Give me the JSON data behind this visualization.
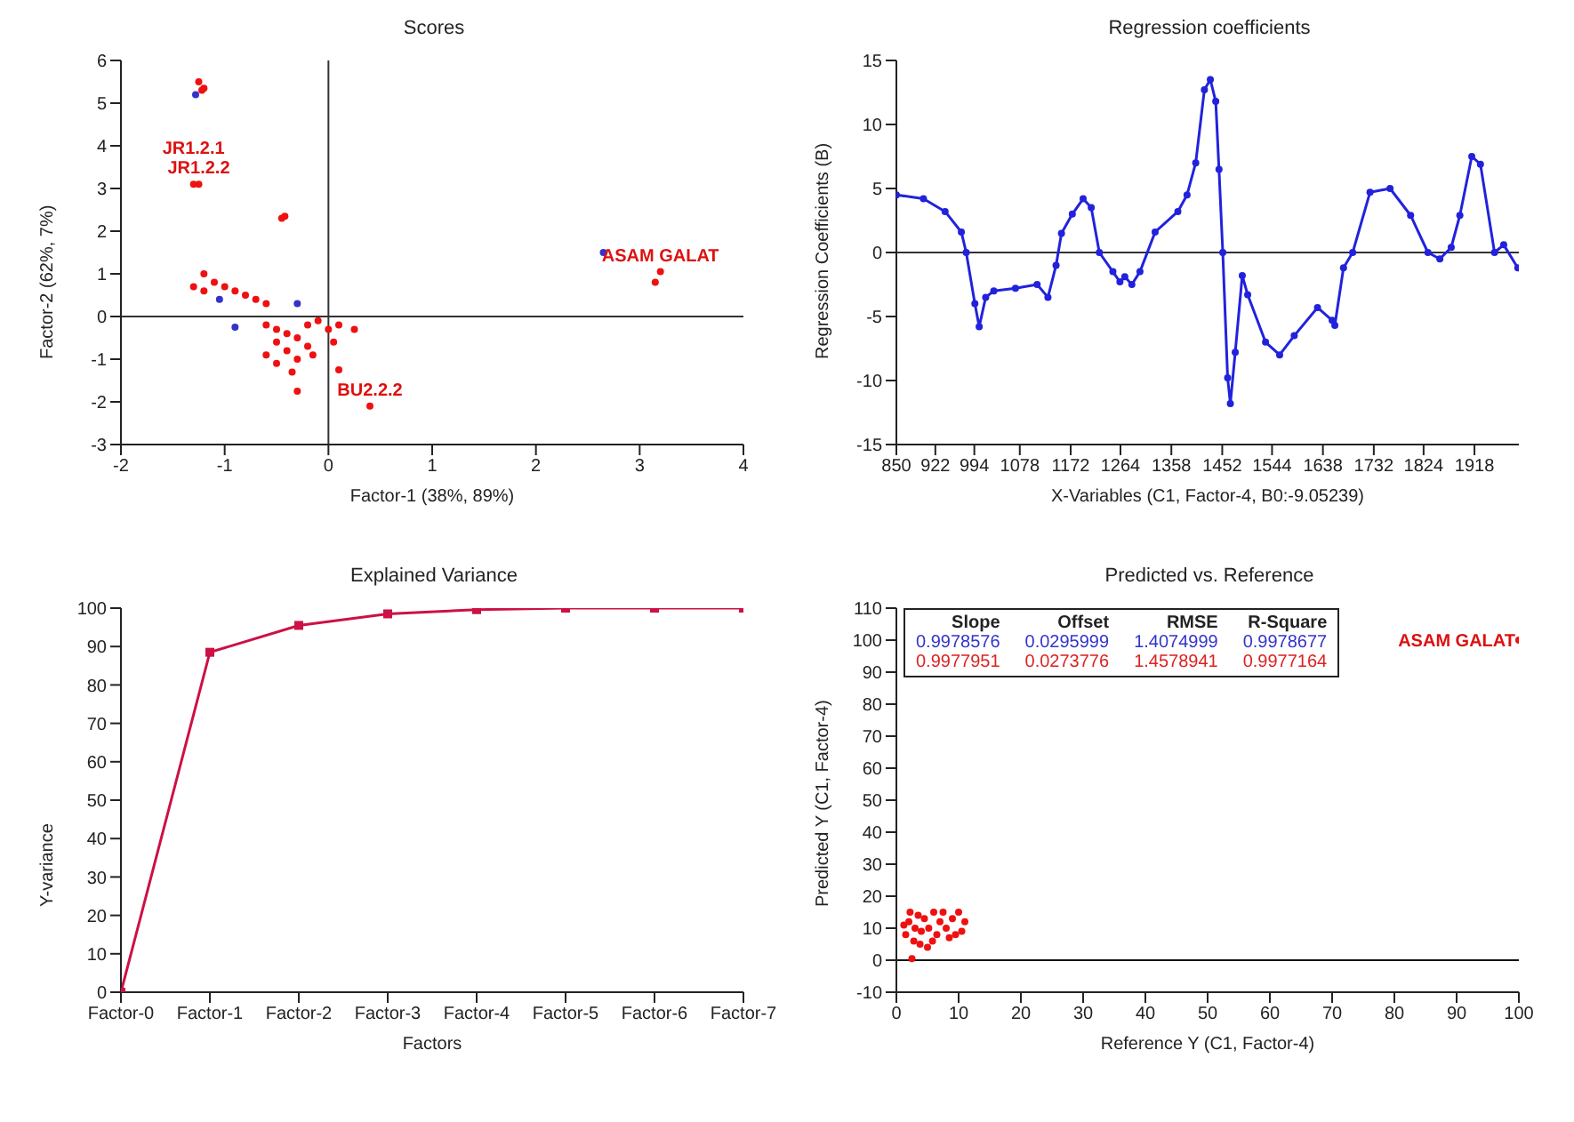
{
  "chart_data": [
    {
      "type": "scatter",
      "title": "Scores",
      "xlabel": "Factor-1 (38%, 89%)",
      "ylabel": "Factor-2 (62%, 7%)",
      "xlim": [
        -2,
        4
      ],
      "xticks": [
        -2,
        -1,
        0,
        1,
        2,
        3,
        4
      ],
      "ylim": [
        -3,
        6
      ],
      "yticks": [
        -3,
        -2,
        -1,
        0,
        1,
        2,
        3,
        4,
        5,
        6
      ],
      "legend": false,
      "marker": "circle",
      "ref_lines": [
        {
          "axis": "x",
          "value": 0,
          "color": "#333333"
        },
        {
          "axis": "y",
          "value": 0,
          "color": "#333333"
        }
      ],
      "annotations": [
        {
          "text": "JR1.2.1",
          "x": -1.3,
          "y": 3.1
        },
        {
          "text": "JR1.2.2",
          "x": -1.25,
          "y": 3.1
        },
        {
          "text": "BU2.2.2",
          "x": 0.4,
          "y": -2.1
        },
        {
          "text": "ASAM GALAT",
          "x": 3.2,
          "y": 1.05
        }
      ],
      "series": [
        {
          "color": "#ee1111",
          "x": [
            -1.22,
            -1.2,
            -1.25,
            -1.3,
            -1.25,
            -0.45,
            -0.42,
            -1.2,
            -1.1,
            -1.0,
            -0.9,
            -0.8,
            -1.2,
            -1.3,
            -0.7,
            -0.6,
            -0.6,
            -0.5,
            -0.4,
            -0.3,
            -0.2,
            -0.1,
            0,
            -0.5,
            -0.4,
            -0.3,
            -0.2,
            -0.6,
            -0.5,
            -0.35,
            -0.15,
            0.05,
            0.1,
            0.25,
            0.1,
            -0.3,
            0.4,
            3.2,
            3.15
          ],
          "values": [
            5.3,
            5.35,
            5.5,
            3.1,
            3.1,
            2.3,
            2.35,
            1.0,
            0.8,
            0.7,
            0.6,
            0.5,
            0.6,
            0.7,
            0.4,
            0.3,
            -0.2,
            -0.3,
            -0.4,
            -0.5,
            -0.2,
            -0.1,
            -0.3,
            -0.6,
            -0.8,
            -1.0,
            -0.7,
            -0.9,
            -1.1,
            -1.3,
            -0.9,
            -0.6,
            -0.2,
            -0.3,
            -1.25,
            -1.75,
            -2.1,
            1.05,
            0.8
          ]
        },
        {
          "color": "#3333cc",
          "x": [
            -1.28,
            -0.9,
            -0.3,
            -1.05,
            2.65
          ],
          "values": [
            5.2,
            -0.25,
            0.3,
            0.4,
            1.5
          ]
        }
      ]
    },
    {
      "type": "line",
      "title": "Regression coefficients",
      "xlabel": "X-Variables (C1, Factor-4, B0:-9.05239)",
      "ylabel": "Regression Coefficients (B)",
      "xlim": [
        850,
        2000
      ],
      "xticks": [
        850,
        922,
        994,
        1078,
        1172,
        1264,
        1358,
        1452,
        1544,
        1638,
        1732,
        1824,
        1918
      ],
      "ylim": [
        -15,
        15
      ],
      "yticks": [
        -15,
        -10,
        -5,
        0,
        5,
        10,
        15
      ],
      "legend": false,
      "marker": "circle",
      "line_style": "solid",
      "ref_lines": [
        {
          "axis": "y",
          "value": 0,
          "color": "#333333"
        }
      ],
      "series": [
        {
          "color": "#2222dd",
          "x": [
            850,
            900,
            940,
            970,
            979,
            995,
            1003,
            1015,
            1030,
            1070,
            1110,
            1130,
            1145,
            1155,
            1175,
            1195,
            1210,
            1225,
            1250,
            1263,
            1272,
            1285,
            1300,
            1328,
            1370,
            1387,
            1403,
            1419,
            1430,
            1440,
            1446,
            1453,
            1462,
            1467,
            1476,
            1489,
            1499,
            1532,
            1558,
            1585,
            1628,
            1655,
            1660,
            1676,
            1693,
            1725,
            1762,
            1800,
            1832,
            1854,
            1875,
            1891,
            1913,
            1929,
            1955,
            1972,
            1998
          ],
          "values": [
            4.5,
            4.2,
            3.2,
            1.6,
            0,
            -4,
            -5.8,
            -3.5,
            -3.0,
            -2.8,
            -2.5,
            -3.5,
            -1,
            1.5,
            3.0,
            4.2,
            3.5,
            0,
            -1.5,
            -2.3,
            -1.9,
            -2.5,
            -1.5,
            1.6,
            3.2,
            4.5,
            7,
            12.7,
            13.5,
            11.8,
            6.5,
            0,
            -9.8,
            -11.8,
            -7.8,
            -1.8,
            -3.3,
            -7,
            -8,
            -6.5,
            -4.3,
            -5.3,
            -5.7,
            -1.2,
            0,
            4.7,
            5,
            2.9,
            0,
            -0.5,
            0.4,
            2.9,
            7.5,
            6.9,
            0,
            0.6,
            -1.2
          ]
        }
      ]
    },
    {
      "type": "line",
      "title": "Explained Variance",
      "xlabel": "Factors",
      "ylabel": "Y-variance",
      "categories": [
        "Factor-0",
        "Factor-1",
        "Factor-2",
        "Factor-3",
        "Factor-4",
        "Factor-5",
        "Factor-6",
        "Factor-7"
      ],
      "ylim": [
        0,
        100
      ],
      "yticks": [
        0,
        10,
        20,
        30,
        40,
        50,
        60,
        70,
        80,
        90,
        100
      ],
      "legend": false,
      "marker": "square",
      "line_style": "solid",
      "series": [
        {
          "color": "#cc1144",
          "values": [
            0,
            88.5,
            95.5,
            98.5,
            99.6,
            100,
            100,
            100
          ]
        }
      ]
    },
    {
      "type": "scatter",
      "title": "Predicted vs. Reference",
      "xlabel": "Reference Y (C1, Factor-4)",
      "ylabel": "Predicted Y (C1, Factor-4)",
      "xlim": [
        0,
        100
      ],
      "xticks": [
        0,
        10,
        20,
        30,
        40,
        50,
        60,
        70,
        80,
        90,
        100
      ],
      "ylim": [
        -10,
        110
      ],
      "yticks": [
        -10,
        0,
        10,
        20,
        30,
        40,
        50,
        60,
        70,
        80,
        90,
        100,
        110
      ],
      "legend": false,
      "marker": "circle",
      "ref_lines": [
        {
          "axis": "y",
          "value": 0,
          "color": "#111111"
        }
      ],
      "annotations": [
        "Slope",
        "Offset",
        "RMSE",
        "R-Square",
        "0.9978576",
        "0.0295999",
        "1.4074999",
        "0.9978677",
        "0.9977951",
        "0.0273776",
        "1.4578941",
        "0.9977164",
        {
          "text": "ASAM GALAT",
          "x": 100,
          "y": 100
        }
      ],
      "series": [
        {
          "color": "#ee1111",
          "x": [
            1.5,
            2,
            2.2,
            2.5,
            2.8,
            3,
            3.5,
            4,
            4.5,
            5,
            5.2,
            6,
            6.5,
            7,
            7.5,
            8,
            8.5,
            9,
            10,
            10.5,
            11,
            3.8,
            1.2,
            5.8,
            9.5,
            100
          ],
          "values": [
            8,
            12,
            15,
            0.5,
            6,
            10,
            14,
            9,
            13,
            4,
            10,
            15,
            8,
            12,
            15,
            10,
            7,
            13,
            15,
            9,
            12,
            5,
            11,
            6,
            8,
            100
          ]
        }
      ]
    }
  ]
}
